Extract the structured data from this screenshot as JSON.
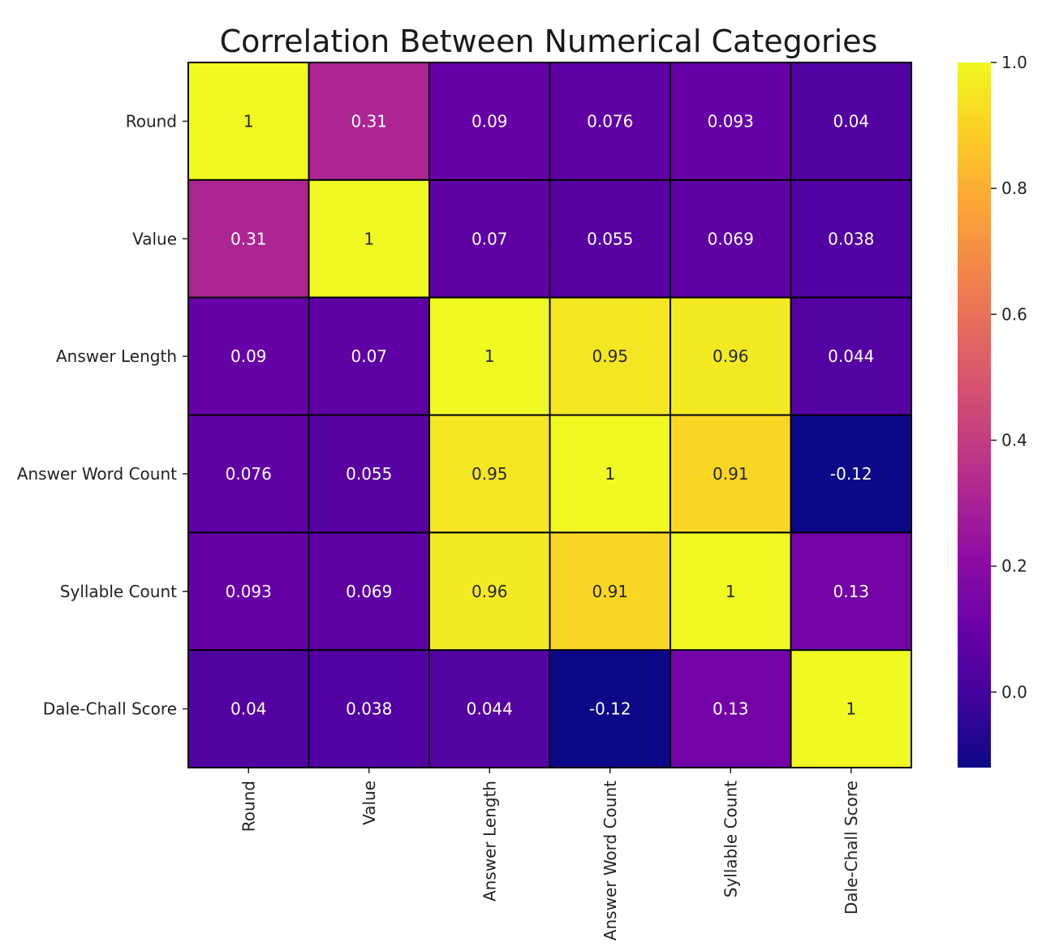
{
  "chart_data": {
    "type": "heatmap",
    "title": "Correlation Between Numerical Categories",
    "xlabel": "",
    "ylabel": "",
    "rows": [
      "Round",
      "Value",
      "Answer Length",
      "Answer Word Count",
      "Syllable Count",
      "Dale-Chall Score"
    ],
    "columns": [
      "Round",
      "Value",
      "Answer Length",
      "Answer Word Count",
      "Syllable Count",
      "Dale-Chall Score"
    ],
    "values": [
      [
        1,
        0.31,
        0.09,
        0.076,
        0.093,
        0.04
      ],
      [
        0.31,
        1,
        0.07,
        0.055,
        0.069,
        0.038
      ],
      [
        0.09,
        0.07,
        1,
        0.95,
        0.96,
        0.044
      ],
      [
        0.076,
        0.055,
        0.95,
        1,
        0.91,
        -0.12
      ],
      [
        0.093,
        0.069,
        0.96,
        0.91,
        1,
        0.13
      ],
      [
        0.04,
        0.038,
        0.044,
        -0.12,
        0.13,
        1
      ]
    ],
    "cell_labels": [
      [
        "1",
        "0.31",
        "0.09",
        "0.076",
        "0.093",
        "0.04"
      ],
      [
        "0.31",
        "1",
        "0.07",
        "0.055",
        "0.069",
        "0.038"
      ],
      [
        "0.09",
        "0.07",
        "1",
        "0.95",
        "0.96",
        "0.044"
      ],
      [
        "0.076",
        "0.055",
        "0.95",
        "1",
        "0.91",
        "-0.12"
      ],
      [
        "0.093",
        "0.069",
        "0.96",
        "0.91",
        "1",
        "0.13"
      ],
      [
        "0.04",
        "0.038",
        "0.044",
        "-0.12",
        "0.13",
        "1"
      ]
    ],
    "colormap": "plasma",
    "vmin": -0.12,
    "vmax": 1,
    "colorbar": {
      "ticks": [
        0.0,
        0.2,
        0.4,
        0.6,
        0.8,
        1.0
      ],
      "tick_labels": [
        "0.0",
        "0.2",
        "0.4",
        "0.6",
        "0.8",
        "1.0"
      ],
      "placement": "right"
    },
    "cell_border_color": "#000000",
    "x_tick_rotation": "vertical"
  }
}
